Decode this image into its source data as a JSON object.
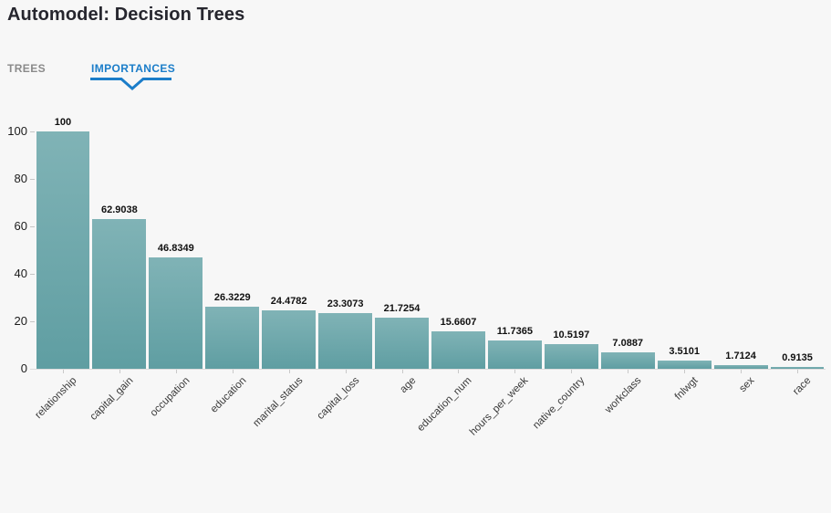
{
  "header": {
    "title": "Automodel: Decision Trees"
  },
  "tabs": [
    {
      "label": "TREES",
      "active": false
    },
    {
      "label": "IMPORTANCES",
      "active": true
    }
  ],
  "colors": {
    "background": "#f7f7f7",
    "accent_blue": "#1b7dc9",
    "inactive_tab_gray": "#8a8a8a",
    "bar_gradient_top": "#80b3b6",
    "bar_gradient_bottom": "#5f9ea2",
    "axis_line": "#dcdcdc"
  },
  "chart_data": {
    "type": "bar",
    "title": "",
    "xlabel": "",
    "ylabel": "",
    "categories": [
      "relationship",
      "capital_gain",
      "occupation",
      "education",
      "marital_status",
      "capital_loss",
      "age",
      "education_num",
      "hours_per_week",
      "native_country",
      "workclass",
      "fnlwgt",
      "sex",
      "race"
    ],
    "values": [
      100,
      62.9038,
      46.8349,
      26.3229,
      24.4782,
      23.3073,
      21.7254,
      15.6607,
      11.7365,
      10.5197,
      7.0887,
      3.5101,
      1.7124,
      0.9135
    ],
    "value_labels": [
      "100",
      "62.9038",
      "46.8349",
      "26.3229",
      "24.4782",
      "23.3073",
      "21.7254",
      "15.6607",
      "11.7365",
      "10.5197",
      "7.0887",
      "3.5101",
      "1.7124",
      "0.9135"
    ],
    "yticks": [
      0,
      20,
      40,
      60,
      80,
      100
    ],
    "ylim": [
      0,
      100
    ],
    "grid": false,
    "legend_position": "none",
    "x_label_rotation_deg": -45
  }
}
